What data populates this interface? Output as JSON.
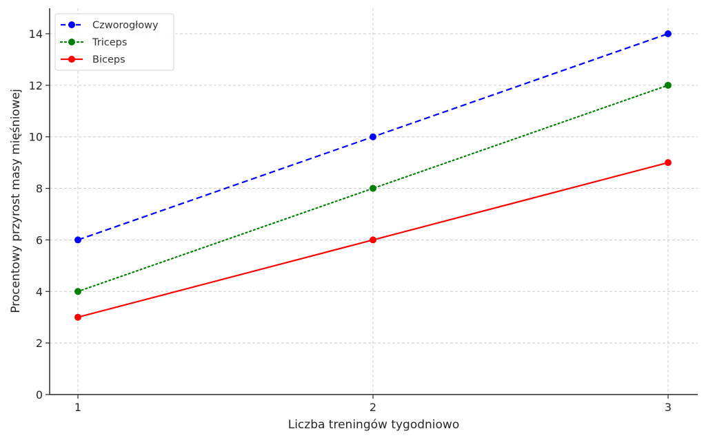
{
  "chart_data": {
    "type": "line",
    "title": "",
    "xlabel": "Liczba treningów tygodniowo",
    "ylabel": "Procentowy przyrost masy mięśniowej",
    "x": [
      1,
      2,
      3
    ],
    "x_tick_labels": [
      "1",
      "2",
      "3"
    ],
    "y_ticks": [
      0,
      2,
      4,
      6,
      8,
      10,
      12,
      14
    ],
    "y_tick_labels": [
      "0",
      "2",
      "4",
      "6",
      "8",
      "10",
      "12",
      "14"
    ],
    "ylim": [
      0,
      15
    ],
    "xlim": [
      0.9,
      3.1
    ],
    "grid": true,
    "legend_position": "upper left",
    "series": [
      {
        "name": "Czworogłowy",
        "values": [
          6,
          10,
          14
        ],
        "color": "#0000ff",
        "linestyle": "dashed",
        "marker": "circle"
      },
      {
        "name": "Triceps",
        "values": [
          4,
          8,
          12
        ],
        "color": "#008000",
        "linestyle": "dotted",
        "marker": "circle"
      },
      {
        "name": "Biceps",
        "values": [
          3,
          6,
          9
        ],
        "color": "#ff0000",
        "linestyle": "solid",
        "marker": "circle"
      }
    ]
  }
}
